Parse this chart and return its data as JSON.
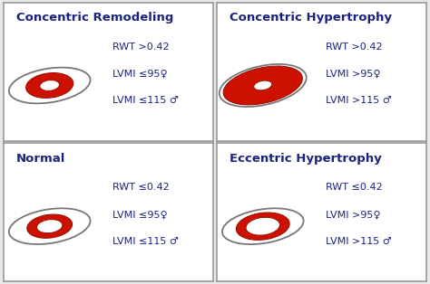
{
  "panels": [
    {
      "title": "Concentric Remodeling",
      "text_lines": [
        "RWT >0.42",
        "LVMI ≤95♀",
        "LVMI ≤115 ♂"
      ],
      "heart_type": "concentric_remodeling",
      "row": 0,
      "col": 0
    },
    {
      "title": "Concentric Hypertrophy",
      "text_lines": [
        "RWT >0.42",
        "LVMI >95♀",
        "LVMI >115 ♂"
      ],
      "heart_type": "concentric_hypertrophy",
      "row": 0,
      "col": 1
    },
    {
      "title": "Normal",
      "text_lines": [
        "RWT ≤0.42",
        "LVMI ≤95♀",
        "LVMI ≤115 ♂"
      ],
      "heart_type": "normal",
      "row": 1,
      "col": 0
    },
    {
      "title": "Eccentric Hypertrophy",
      "text_lines": [
        "RWT ≤0.42",
        "LVMI >95♀",
        "LVMI >115 ♂"
      ],
      "heart_type": "eccentric_hypertrophy",
      "row": 1,
      "col": 1
    }
  ],
  "bg_color": "#e8e8e8",
  "panel_bg": "#ffffff",
  "border_color": "#999999",
  "title_color": "#1a237e",
  "text_color": "#1a237e",
  "red_fill": "#cc1100",
  "outer_ellipse_color": "#777777",
  "title_fontsize": 9.5,
  "text_fontsize": 8.0
}
